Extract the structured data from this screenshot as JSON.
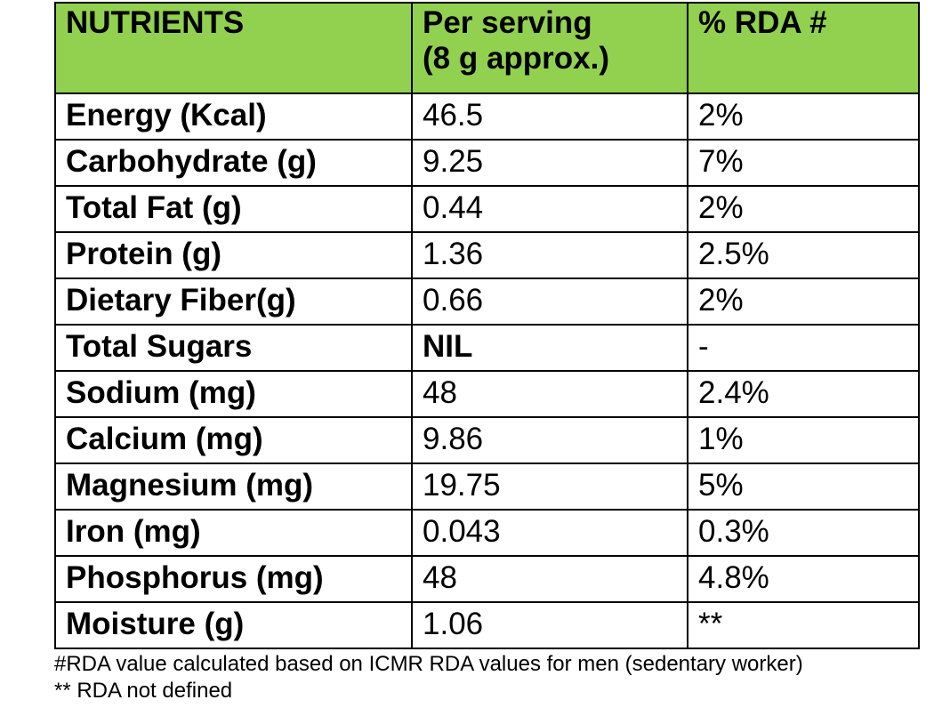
{
  "table": {
    "headers": [
      "NUTRIENTS",
      "Per serving\n(8 g approx.)",
      "% RDA #"
    ],
    "header_lines": [
      "Per serving",
      "(8 g approx.)"
    ],
    "header_color": "#92D050",
    "rows": [
      [
        "Energy (Kcal)",
        "46.5",
        "2%"
      ],
      [
        "Carbohydrate (g)",
        "9.25",
        "7%"
      ],
      [
        "Total Fat (g)",
        "0.44",
        "2%"
      ],
      [
        "Protein (g)",
        "1.36",
        "2.5%"
      ],
      [
        "Dietary Fiber(g)",
        "0.66",
        "2%"
      ],
      [
        "Total Sugars",
        "NIL",
        "-"
      ],
      [
        "Sodium (mg)",
        "48",
        "2.4%"
      ],
      [
        "Calcium (mg)",
        "9.86",
        "1%"
      ],
      [
        "Magnesium (mg)",
        "19.75",
        "5%"
      ],
      [
        "Iron (mg)",
        "0.043",
        "0.3%"
      ],
      [
        "Phosphorus (mg)",
        "48",
        "4.8%"
      ],
      [
        "Moisture (g)",
        "1.06",
        "**"
      ]
    ]
  },
  "footnotes": [
    "#RDA value calculated based on ICMR RDA values for men (sedentary worker)",
    "** RDA not defined"
  ]
}
